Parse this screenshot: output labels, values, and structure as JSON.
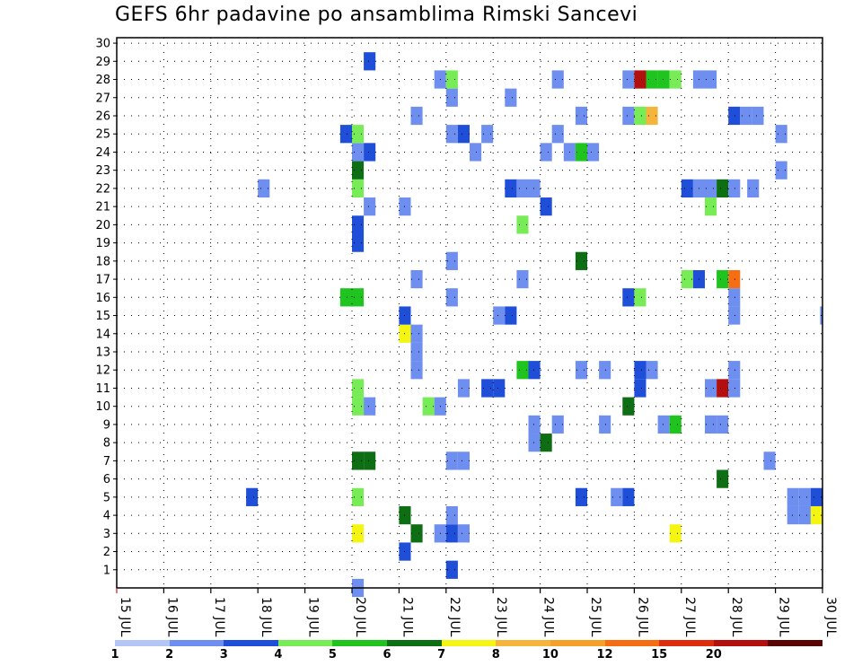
{
  "title": "GEFS 6hr padavine po ansamblima Rimski Sancevi",
  "chart_data": {
    "type": "heatmap",
    "title": "GEFS 6hr padavine po ansamblima Rimski Sancevi",
    "x_tick_labels": [
      "15 JUL",
      "16 JUL",
      "17 JUL",
      "18 JUL",
      "19 JUL",
      "20 JUL",
      "21 JUL",
      "22 JUL",
      "23 JUL",
      "24 JUL",
      "25 JUL",
      "26 JUL",
      "27 JUL",
      "28 JUL",
      "29 JUL",
      "30 JUL"
    ],
    "y_tick_labels": [
      "1",
      "2",
      "3",
      "4",
      "5",
      "6",
      "7",
      "8",
      "9",
      "10",
      "11",
      "12",
      "13",
      "14",
      "15",
      "16",
      "17",
      "18",
      "19",
      "20",
      "21",
      "22",
      "23",
      "24",
      "25",
      "26",
      "27",
      "28",
      "29",
      "30"
    ],
    "x_unit": "days from 15 JUL 00Z",
    "xlim": [
      0,
      15
    ],
    "ylim": [
      0,
      30
    ],
    "grid": true,
    "legend_placement": "bottom",
    "colorbar": {
      "levels": [
        "1",
        "2",
        "3",
        "4",
        "5",
        "6",
        "7",
        "8",
        "10",
        "12",
        "15",
        "20"
      ],
      "colors": [
        "#b4c6f5",
        "#6e8ff0",
        "#1f4fd8",
        "#78ec56",
        "#1fc41f",
        "#0e6e14",
        "#f5f514",
        "#f5b43c",
        "#f5a028",
        "#f56e14",
        "#dc2d0f",
        "#b40f0f",
        "#5a0505"
      ]
    },
    "cell_width_days": 0.25,
    "cells": [
      [
        5.0,
        0,
        1
      ],
      [
        7.0,
        1,
        2
      ],
      [
        6.0,
        2,
        2
      ],
      [
        5.0,
        3,
        6
      ],
      [
        6.25,
        3,
        5
      ],
      [
        6.75,
        3,
        1
      ],
      [
        7.0,
        3,
        2
      ],
      [
        7.25,
        3,
        1
      ],
      [
        11.75,
        3,
        6
      ],
      [
        6.0,
        4,
        5
      ],
      [
        7.0,
        4,
        1
      ],
      [
        14.25,
        4,
        1
      ],
      [
        14.5,
        4,
        1
      ],
      [
        14.75,
        4,
        6
      ],
      [
        2.75,
        5,
        2
      ],
      [
        5.0,
        5,
        3
      ],
      [
        9.75,
        5,
        2
      ],
      [
        10.5,
        5,
        1
      ],
      [
        10.75,
        5,
        2
      ],
      [
        14.25,
        5,
        1
      ],
      [
        14.5,
        5,
        1
      ],
      [
        14.75,
        5,
        2
      ],
      [
        12.75,
        6,
        5
      ],
      [
        5.0,
        7,
        5
      ],
      [
        5.25,
        7,
        5
      ],
      [
        7.0,
        7,
        1
      ],
      [
        7.25,
        7,
        1
      ],
      [
        13.75,
        7,
        1
      ],
      [
        8.75,
        8,
        1
      ],
      [
        9.0,
        8,
        5
      ],
      [
        8.75,
        9,
        1
      ],
      [
        9.25,
        9,
        1
      ],
      [
        10.25,
        9,
        1
      ],
      [
        11.5,
        9,
        1
      ],
      [
        11.75,
        9,
        4
      ],
      [
        12.5,
        9,
        1
      ],
      [
        12.75,
        9,
        1
      ],
      [
        5.0,
        10,
        3
      ],
      [
        5.25,
        10,
        1
      ],
      [
        6.5,
        10,
        3
      ],
      [
        6.75,
        10,
        1
      ],
      [
        10.75,
        10,
        5
      ],
      [
        5.0,
        11,
        3
      ],
      [
        7.25,
        11,
        1
      ],
      [
        7.75,
        11,
        2
      ],
      [
        8.0,
        11,
        2
      ],
      [
        11.0,
        11,
        2
      ],
      [
        12.5,
        11,
        1
      ],
      [
        12.75,
        11,
        11
      ],
      [
        13.0,
        11,
        1
      ],
      [
        6.25,
        12,
        1
      ],
      [
        8.5,
        12,
        4
      ],
      [
        8.75,
        12,
        2
      ],
      [
        9.75,
        12,
        1
      ],
      [
        10.25,
        12,
        1
      ],
      [
        11.0,
        12,
        2
      ],
      [
        11.25,
        12,
        1
      ],
      [
        13.0,
        12,
        1
      ],
      [
        6.25,
        13,
        1
      ],
      [
        6.0,
        14,
        6
      ],
      [
        6.25,
        14,
        1
      ],
      [
        6.0,
        15,
        2
      ],
      [
        8.0,
        15,
        1
      ],
      [
        8.25,
        15,
        2
      ],
      [
        13.0,
        15,
        1
      ],
      [
        14.95,
        15,
        1
      ],
      [
        4.75,
        16,
        4
      ],
      [
        5.0,
        16,
        4
      ],
      [
        7.0,
        16,
        1
      ],
      [
        10.75,
        16,
        2
      ],
      [
        11.0,
        16,
        3
      ],
      [
        13.0,
        16,
        1
      ],
      [
        6.25,
        17,
        1
      ],
      [
        8.5,
        17,
        1
      ],
      [
        12.0,
        17,
        3
      ],
      [
        12.25,
        17,
        2
      ],
      [
        12.75,
        17,
        4
      ],
      [
        13.0,
        17,
        9
      ],
      [
        7.0,
        18,
        1
      ],
      [
        9.75,
        18,
        5
      ],
      [
        5.0,
        19,
        2
      ],
      [
        5.0,
        20,
        2
      ],
      [
        8.5,
        20,
        3
      ],
      [
        5.25,
        21,
        1
      ],
      [
        6.0,
        21,
        1
      ],
      [
        9.0,
        21,
        2
      ],
      [
        12.5,
        21,
        3
      ],
      [
        3.0,
        22,
        1
      ],
      [
        5.0,
        22,
        3
      ],
      [
        8.25,
        22,
        2
      ],
      [
        8.5,
        22,
        1
      ],
      [
        8.75,
        22,
        1
      ],
      [
        12.0,
        22,
        2
      ],
      [
        12.25,
        22,
        1
      ],
      [
        12.5,
        22,
        1
      ],
      [
        12.75,
        22,
        5
      ],
      [
        13.0,
        22,
        1
      ],
      [
        13.4,
        22,
        1
      ],
      [
        5.0,
        23,
        5
      ],
      [
        14.0,
        23,
        1
      ],
      [
        5.0,
        24,
        1
      ],
      [
        5.25,
        24,
        2
      ],
      [
        7.5,
        24,
        1
      ],
      [
        9.0,
        24,
        1
      ],
      [
        9.5,
        24,
        1
      ],
      [
        9.75,
        24,
        4
      ],
      [
        10.0,
        24,
        1
      ],
      [
        4.75,
        25,
        2
      ],
      [
        5.0,
        25,
        3
      ],
      [
        7.0,
        25,
        1
      ],
      [
        7.25,
        25,
        2
      ],
      [
        7.75,
        25,
        1
      ],
      [
        9.25,
        25,
        1
      ],
      [
        14.0,
        25,
        1
      ],
      [
        6.25,
        26,
        1
      ],
      [
        9.75,
        26,
        1
      ],
      [
        10.75,
        26,
        1
      ],
      [
        11.0,
        26,
        3
      ],
      [
        11.25,
        26,
        7
      ],
      [
        13.0,
        26,
        2
      ],
      [
        13.25,
        26,
        1
      ],
      [
        13.5,
        26,
        1
      ],
      [
        7.0,
        27,
        1
      ],
      [
        8.25,
        27,
        1
      ],
      [
        6.75,
        28,
        1
      ],
      [
        7.0,
        28,
        3
      ],
      [
        9.25,
        28,
        1
      ],
      [
        10.75,
        28,
        1
      ],
      [
        11.0,
        28,
        11
      ],
      [
        11.25,
        28,
        4
      ],
      [
        11.5,
        28,
        4
      ],
      [
        11.75,
        28,
        3
      ],
      [
        12.25,
        28,
        1
      ],
      [
        12.5,
        28,
        1
      ],
      [
        5.25,
        29,
        2
      ]
    ]
  }
}
